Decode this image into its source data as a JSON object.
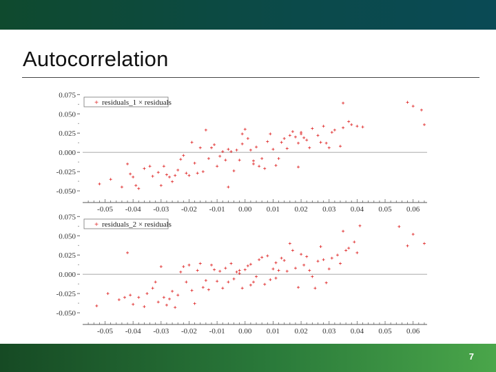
{
  "slide": {
    "title": "Autocorrelation",
    "page_number": "7"
  },
  "colors": {
    "top_band": "#0b4a4a",
    "bottom_band": "#2a7a3a",
    "points": "#e03030",
    "zero_line": "#b0b0b0"
  },
  "chart_data": [
    {
      "type": "scatter",
      "legend": "residuals_1 × residuals",
      "xlim": [
        -0.058,
        0.065
      ],
      "ylim": [
        -0.058,
        0.078
      ],
      "xticks": [
        -0.05,
        -0.04,
        -0.03,
        -0.02,
        -0.01,
        0.0,
        0.01,
        0.02,
        0.03,
        0.04,
        0.05,
        0.06
      ],
      "xtick_labels": [
        "-0.05",
        "-0.04",
        "-0.03",
        "-0.02",
        "-0.01",
        "0.00",
        "0.01",
        "0.02",
        "0.03",
        "0.04",
        "0.05",
        "0.06"
      ],
      "yticks": [
        -0.05,
        -0.025,
        0.0,
        0.025,
        0.05,
        0.075
      ],
      "ytick_labels": [
        "-0.050",
        "-0.025",
        "0.000",
        "0.025",
        "0.050",
        "0.075"
      ],
      "points": [
        [
          -0.052,
          -0.041
        ],
        [
          -0.048,
          -0.035
        ],
        [
          -0.044,
          -0.045
        ],
        [
          -0.042,
          -0.015
        ],
        [
          -0.041,
          -0.028
        ],
        [
          -0.04,
          -0.032
        ],
        [
          -0.039,
          -0.043
        ],
        [
          -0.038,
          -0.047
        ],
        [
          -0.036,
          -0.021
        ],
        [
          -0.034,
          -0.018
        ],
        [
          -0.033,
          -0.031
        ],
        [
          -0.031,
          -0.026
        ],
        [
          -0.03,
          -0.043
        ],
        [
          -0.029,
          -0.018
        ],
        [
          -0.028,
          -0.029
        ],
        [
          -0.027,
          -0.032
        ],
        [
          -0.026,
          -0.038
        ],
        [
          -0.025,
          -0.03
        ],
        [
          -0.024,
          -0.023
        ],
        [
          -0.023,
          -0.009
        ],
        [
          -0.022,
          -0.004
        ],
        [
          -0.021,
          -0.027
        ],
        [
          -0.019,
          0.013
        ],
        [
          -0.018,
          -0.014
        ],
        [
          -0.017,
          -0.027
        ],
        [
          -0.016,
          0.006
        ],
        [
          -0.015,
          -0.025
        ],
        [
          -0.014,
          0.029
        ],
        [
          -0.013,
          -0.008
        ],
        [
          -0.012,
          0.006
        ],
        [
          -0.011,
          0.01
        ],
        [
          -0.01,
          -0.018
        ],
        [
          -0.009,
          -0.005
        ],
        [
          -0.008,
          0.001
        ],
        [
          -0.007,
          -0.01
        ],
        [
          -0.006,
          0.004
        ],
        [
          -0.005,
          0.001
        ],
        [
          -0.004,
          -0.024
        ],
        [
          -0.003,
          0.003
        ],
        [
          -0.002,
          -0.01
        ],
        [
          -0.001,
          0.011
        ],
        [
          0.0,
          0.03
        ],
        [
          0.001,
          0.018
        ],
        [
          0.002,
          0.003
        ],
        [
          0.003,
          -0.015
        ],
        [
          0.004,
          0.007
        ],
        [
          0.005,
          -0.018
        ],
        [
          0.006,
          -0.008
        ],
        [
          0.007,
          -0.021
        ],
        [
          0.008,
          0.014
        ],
        [
          0.009,
          0.024
        ],
        [
          0.01,
          0.004
        ],
        [
          0.011,
          -0.017
        ],
        [
          0.012,
          -0.008
        ],
        [
          0.013,
          0.013
        ],
        [
          0.014,
          0.018
        ],
        [
          0.015,
          0.005
        ],
        [
          0.016,
          0.022
        ],
        [
          0.017,
          0.027
        ],
        [
          0.018,
          0.02
        ],
        [
          0.019,
          0.012
        ],
        [
          0.02,
          0.024
        ],
        [
          0.021,
          0.019
        ],
        [
          0.022,
          0.016
        ],
        [
          0.023,
          0.006
        ],
        [
          0.024,
          0.031
        ],
        [
          0.026,
          0.022
        ],
        [
          0.027,
          0.013
        ],
        [
          0.028,
          0.034
        ],
        [
          0.029,
          0.012
        ],
        [
          0.03,
          0.006
        ],
        [
          0.031,
          0.026
        ],
        [
          0.032,
          0.029
        ],
        [
          0.034,
          0.008
        ],
        [
          0.035,
          0.032
        ],
        [
          0.037,
          0.04
        ],
        [
          0.038,
          0.036
        ],
        [
          0.04,
          0.034
        ],
        [
          0.042,
          0.033
        ],
        [
          0.058,
          0.065
        ],
        [
          0.06,
          0.06
        ],
        [
          0.063,
          0.055
        ],
        [
          0.064,
          0.036
        ],
        [
          0.035,
          0.064
        ],
        [
          0.02,
          0.026
        ],
        [
          0.019,
          -0.019
        ],
        [
          -0.001,
          0.024
        ],
        [
          0.003,
          -0.011
        ],
        [
          -0.006,
          -0.045
        ],
        [
          -0.02,
          -0.03
        ]
      ]
    },
    {
      "type": "scatter",
      "legend": "residuals_2 × residuals",
      "xlim": [
        -0.058,
        0.065
      ],
      "ylim": [
        -0.058,
        0.078
      ],
      "xticks": [
        -0.05,
        -0.04,
        -0.03,
        -0.02,
        -0.01,
        0.0,
        0.01,
        0.02,
        0.03,
        0.04,
        0.05,
        0.06
      ],
      "xtick_labels": [
        "-0.05",
        "-0.04",
        "-0.03",
        "-0.02",
        "-0.01",
        "0.00",
        "0.01",
        "0.02",
        "0.03",
        "0.04",
        "0.05",
        "0.06"
      ],
      "yticks": [
        -0.05,
        -0.025,
        0.0,
        0.025,
        0.05,
        0.075
      ],
      "ytick_labels": [
        "-0.050",
        "-0.025",
        "0.000",
        "0.025",
        "0.050",
        "0.075"
      ],
      "points": [
        [
          -0.053,
          -0.041
        ],
        [
          -0.049,
          -0.025
        ],
        [
          -0.045,
          -0.033
        ],
        [
          -0.043,
          -0.03
        ],
        [
          -0.042,
          0.028
        ],
        [
          -0.041,
          -0.027
        ],
        [
          -0.04,
          -0.039
        ],
        [
          -0.038,
          -0.03
        ],
        [
          -0.036,
          -0.042
        ],
        [
          -0.035,
          -0.025
        ],
        [
          -0.033,
          -0.018
        ],
        [
          -0.032,
          -0.01
        ],
        [
          -0.031,
          -0.036
        ],
        [
          -0.03,
          0.01
        ],
        [
          -0.029,
          -0.03
        ],
        [
          -0.028,
          -0.04
        ],
        [
          -0.027,
          -0.032
        ],
        [
          -0.026,
          -0.022
        ],
        [
          -0.025,
          -0.043
        ],
        [
          -0.024,
          -0.027
        ],
        [
          -0.023,
          0.003
        ],
        [
          -0.022,
          0.01
        ],
        [
          -0.021,
          -0.01
        ],
        [
          -0.02,
          0.012
        ],
        [
          -0.019,
          -0.021
        ],
        [
          -0.018,
          -0.038
        ],
        [
          -0.017,
          0.005
        ],
        [
          -0.016,
          0.014
        ],
        [
          -0.015,
          -0.017
        ],
        [
          -0.014,
          -0.008
        ],
        [
          -0.013,
          -0.02
        ],
        [
          -0.012,
          0.012
        ],
        [
          -0.011,
          0.006
        ],
        [
          -0.01,
          -0.009
        ],
        [
          -0.009,
          0.004
        ],
        [
          -0.008,
          -0.018
        ],
        [
          -0.007,
          0.008
        ],
        [
          -0.006,
          -0.01
        ],
        [
          -0.005,
          0.014
        ],
        [
          -0.004,
          -0.006
        ],
        [
          -0.003,
          0.003
        ],
        [
          -0.002,
          0.001
        ],
        [
          -0.001,
          -0.018
        ],
        [
          0.0,
          0.006
        ],
        [
          0.001,
          0.011
        ],
        [
          0.002,
          0.013
        ],
        [
          0.003,
          -0.01
        ],
        [
          0.004,
          -0.003
        ],
        [
          0.005,
          0.019
        ],
        [
          0.006,
          0.022
        ],
        [
          0.007,
          -0.013
        ],
        [
          0.008,
          0.024
        ],
        [
          0.009,
          -0.007
        ],
        [
          0.01,
          0.007
        ],
        [
          0.011,
          0.015
        ],
        [
          0.012,
          0.005
        ],
        [
          0.013,
          0.021
        ],
        [
          0.014,
          0.018
        ],
        [
          0.015,
          0.004
        ],
        [
          0.016,
          0.04
        ],
        [
          0.017,
          0.031
        ],
        [
          0.018,
          0.008
        ],
        [
          0.019,
          -0.017
        ],
        [
          0.02,
          0.026
        ],
        [
          0.021,
          0.012
        ],
        [
          0.022,
          0.023
        ],
        [
          0.023,
          0.005
        ],
        [
          0.024,
          -0.003
        ],
        [
          0.026,
          0.017
        ],
        [
          0.027,
          0.036
        ],
        [
          0.028,
          0.019
        ],
        [
          0.029,
          -0.011
        ],
        [
          0.03,
          0.007
        ],
        [
          0.031,
          0.021
        ],
        [
          0.033,
          0.025
        ],
        [
          0.034,
          0.014
        ],
        [
          0.035,
          0.056
        ],
        [
          0.036,
          0.031
        ],
        [
          0.037,
          0.034
        ],
        [
          0.039,
          0.042
        ],
        [
          0.04,
          0.028
        ],
        [
          0.041,
          0.063
        ],
        [
          0.055,
          0.062
        ],
        [
          0.058,
          0.037
        ],
        [
          0.06,
          0.052
        ],
        [
          0.064,
          0.04
        ],
        [
          0.002,
          -0.014
        ],
        [
          -0.002,
          0.005
        ],
        [
          0.025,
          -0.018
        ],
        [
          0.011,
          -0.005
        ]
      ]
    }
  ]
}
